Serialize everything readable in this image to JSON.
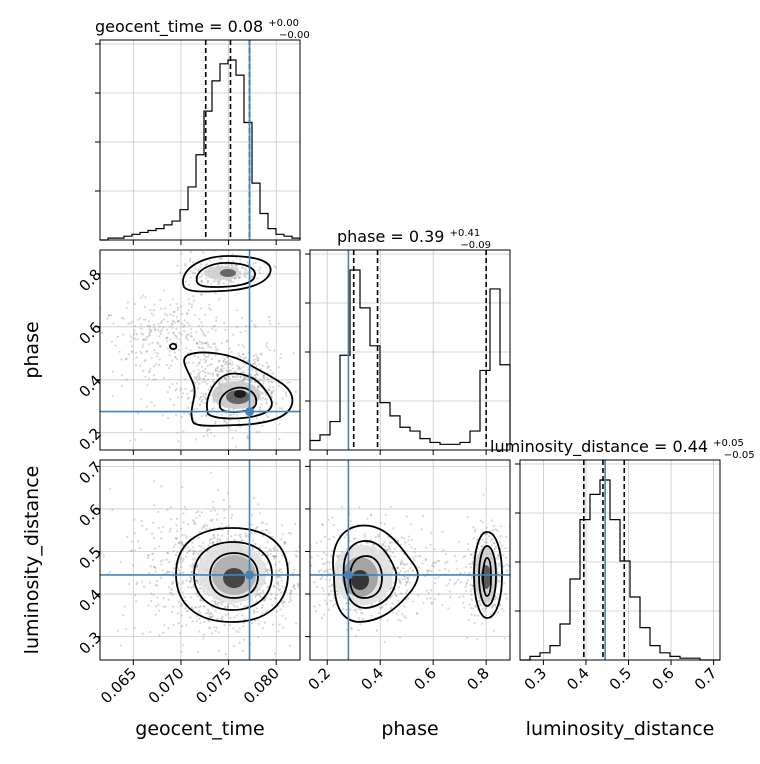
{
  "chart_data": {
    "type": "corner",
    "parameters": [
      "geocent_time",
      "phase",
      "luminosity_distance"
    ],
    "titles": [
      {
        "base": "geocent_time = 0.08",
        "sup": "+0.00",
        "sub": "−0.00"
      },
      {
        "base": "phase = 0.39",
        "sup": "+0.41",
        "sub": "−0.09"
      },
      {
        "base": "luminosity_distance = 0.44",
        "sup": "+0.05",
        "sub": "−0.05"
      }
    ],
    "ranges": {
      "geocent_time": [
        0.0615,
        0.0825
      ],
      "phase": [
        0.135,
        0.89
      ],
      "luminosity_distance": [
        0.245,
        0.715
      ]
    },
    "ticks": {
      "geocent_time": [
        "0.065",
        "0.070",
        "0.075",
        "0.080"
      ],
      "phase": [
        "0.2",
        "0.4",
        "0.6",
        "0.8"
      ],
      "luminosity_distance": [
        "0.3",
        "0.4",
        "0.5",
        "0.6",
        "0.7"
      ],
      "luminosity_distance_y": [
        "0.3",
        "0.4",
        "0.5",
        "0.6",
        "0.7"
      ],
      "phase_y": [
        "0.2",
        "0.4",
        "0.6",
        "0.8"
      ]
    },
    "truths": {
      "geocent_time": 0.0772,
      "phase": 0.28,
      "luminosity_distance": 0.445
    },
    "quantiles": {
      "geocent_time": [
        0.0726,
        0.0752,
        0.0772
      ],
      "phase": [
        0.3,
        0.39,
        0.8
      ],
      "luminosity_distance": [
        0.395,
        0.44,
        0.49
      ]
    },
    "histograms": {
      "geocent_time": {
        "range": [
          0.0615,
          0.0825
        ],
        "counts": [
          0,
          1,
          1,
          2,
          3,
          4,
          5,
          6,
          8,
          10,
          16,
          28,
          45,
          68,
          84,
          93,
          95,
          87,
          62,
          30,
          14,
          6,
          3,
          2,
          1
        ]
      },
      "phase": {
        "range": [
          0.135,
          0.89
        ],
        "counts": [
          5,
          8,
          15,
          50,
          95,
          75,
          55,
          25,
          18,
          12,
          10,
          6,
          4,
          3,
          3,
          4,
          10,
          42,
          85,
          45
        ]
      },
      "luminosity_distance": {
        "range": [
          0.245,
          0.715
        ],
        "counts": [
          0,
          2,
          4,
          8,
          20,
          45,
          78,
          92,
          100,
          78,
          55,
          35,
          18,
          8,
          4,
          2,
          1,
          1,
          0,
          0
        ]
      }
    },
    "grid": true,
    "colors": {
      "truth": "#4682b4",
      "contour": "#000000",
      "samples": "#8c8c8c"
    }
  }
}
